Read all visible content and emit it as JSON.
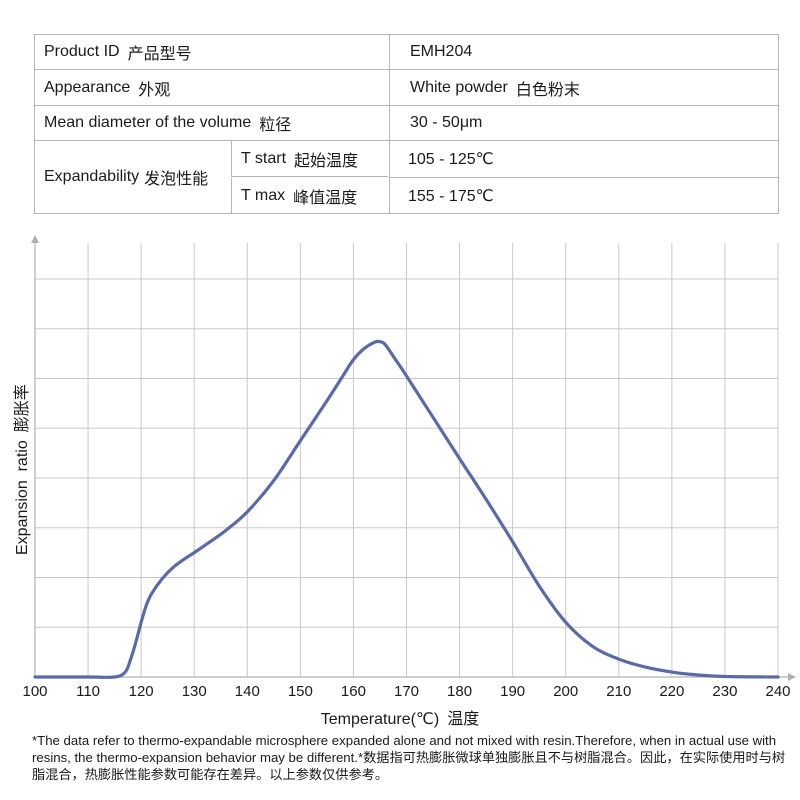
{
  "table": {
    "rows": [
      {
        "label": "Product ID",
        "label_cn": "产品型号",
        "value": "EMH204"
      },
      {
        "label": "Appearance",
        "label_cn": "外观",
        "value": "White powder",
        "value_cn": "白色粉末"
      },
      {
        "label": "Mean diameter of the volume",
        "label_cn": "粒径",
        "value": "30 - 50μm"
      }
    ],
    "expandability": {
      "label": "Expandability",
      "label_cn": "发泡性能",
      "t_start_label": "T start",
      "t_start_label_cn": "起始温度",
      "t_start_value": "105 - 125℃",
      "t_max_label": "T max",
      "t_max_label_cn": "峰值温度",
      "t_max_value": "155 - 175℃"
    }
  },
  "chart_data": {
    "type": "line",
    "xlabel": "Temperature(℃)",
    "xlabel_cn": "温度",
    "ylabel": "Expansion  ratio",
    "ylabel_cn": "膨胀率",
    "x_ticks": [
      100,
      110,
      120,
      130,
      140,
      150,
      160,
      170,
      180,
      190,
      200,
      210,
      220,
      230,
      240
    ],
    "xlim": [
      100,
      240
    ],
    "ylim": [
      0,
      8
    ],
    "y_ticks_labeled": false,
    "grid": true,
    "line_color": "#5a6aa8",
    "series": [
      {
        "x": [
          100,
          110,
          115,
          117,
          118,
          119,
          120,
          121,
          122,
          124,
          126,
          128,
          130,
          133,
          136,
          140,
          145,
          150,
          155,
          158,
          160,
          162,
          164,
          165,
          166,
          168,
          170,
          175,
          180,
          185,
          190,
          195,
          200,
          205,
          210,
          215,
          220,
          225,
          230,
          240
        ],
        "y": [
          0,
          0,
          0,
          0.1,
          0.35,
          0.7,
          1.1,
          1.45,
          1.68,
          1.98,
          2.2,
          2.36,
          2.5,
          2.72,
          2.95,
          3.32,
          3.95,
          4.75,
          5.55,
          6.05,
          6.38,
          6.6,
          6.73,
          6.74,
          6.68,
          6.37,
          6.05,
          5.22,
          4.39,
          3.57,
          2.72,
          1.83,
          1.1,
          0.62,
          0.36,
          0.2,
          0.1,
          0.04,
          0.01,
          0
        ]
      }
    ]
  },
  "footnote": "*The data refer to thermo-expandable microsphere expanded alone and not mixed with resin.Therefore, when in actual use with resins, the thermo-expansion behavior may be different.*数据指可热膨胀微球单独膨胀且不与树脂混合。因此，在实际使用时与树脂混合，热膨胀性能参数可能存在差异。以上参数仅供参考。"
}
